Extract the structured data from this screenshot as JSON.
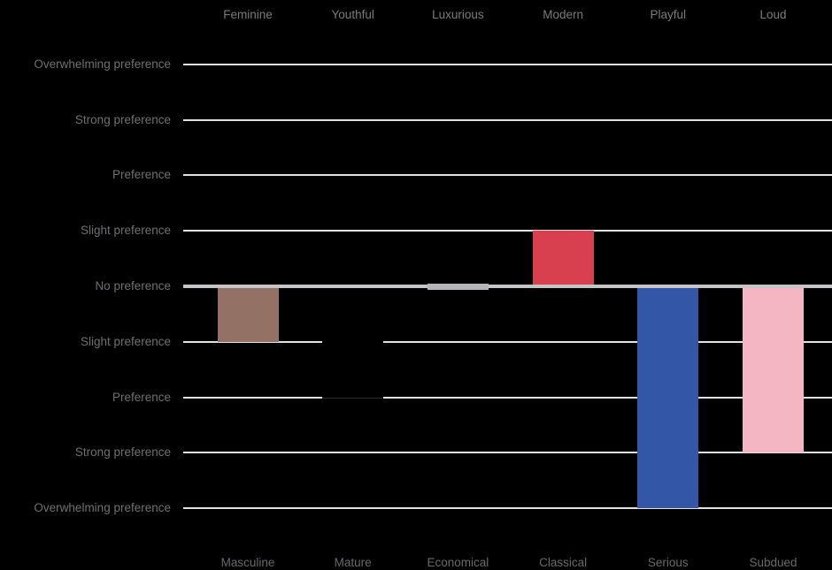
{
  "chart_data": {
    "type": "bar",
    "subtype": "diverging-vertical-semantic-differential",
    "title": "",
    "categories_top": [
      "Feminine",
      "Youthful",
      "Luxurious",
      "Modern",
      "Playful",
      "Loud"
    ],
    "categories_bottom": [
      "Masculine",
      "Mature",
      "Economical",
      "Classical",
      "Serious",
      "Subdued"
    ],
    "values": [
      -1,
      -2,
      0,
      1,
      -4,
      -3
    ],
    "value_note": "preference steps: positive = toward top word, negative = toward bottom word; 1 = Slight preference, 2 = Preference, 3 = Strong preference, 4 = Overwhelming preference",
    "bar_names": [
      "masculine",
      "mature",
      "luxurious-economical",
      "modern",
      "serious",
      "subdued"
    ],
    "bar_colors": [
      "#937265",
      "#000000",
      "#b4b5b7",
      "#d8404f",
      "#3356a6",
      "#f5b6c3"
    ],
    "y_tick_values": [
      4,
      3,
      2,
      1,
      0,
      -1,
      -2,
      -3,
      -4
    ],
    "y_tick_labels": [
      "Overwhelming preference",
      "Strong preference",
      "Preference",
      "Slight preference",
      "No preference",
      "Slight preference",
      "Preference",
      "Strong preference",
      "Overwhelming preference"
    ],
    "ylim": [
      -4,
      4
    ],
    "grid": true,
    "legend": "none",
    "colors": {
      "background": "#000000",
      "gridline": "#e2e2e2",
      "zero_line": "#c5c5c7",
      "top_label_text": "#7a7b7d",
      "y_label_text": "#6f7072",
      "bottom_label_text": "#696a6c"
    }
  }
}
